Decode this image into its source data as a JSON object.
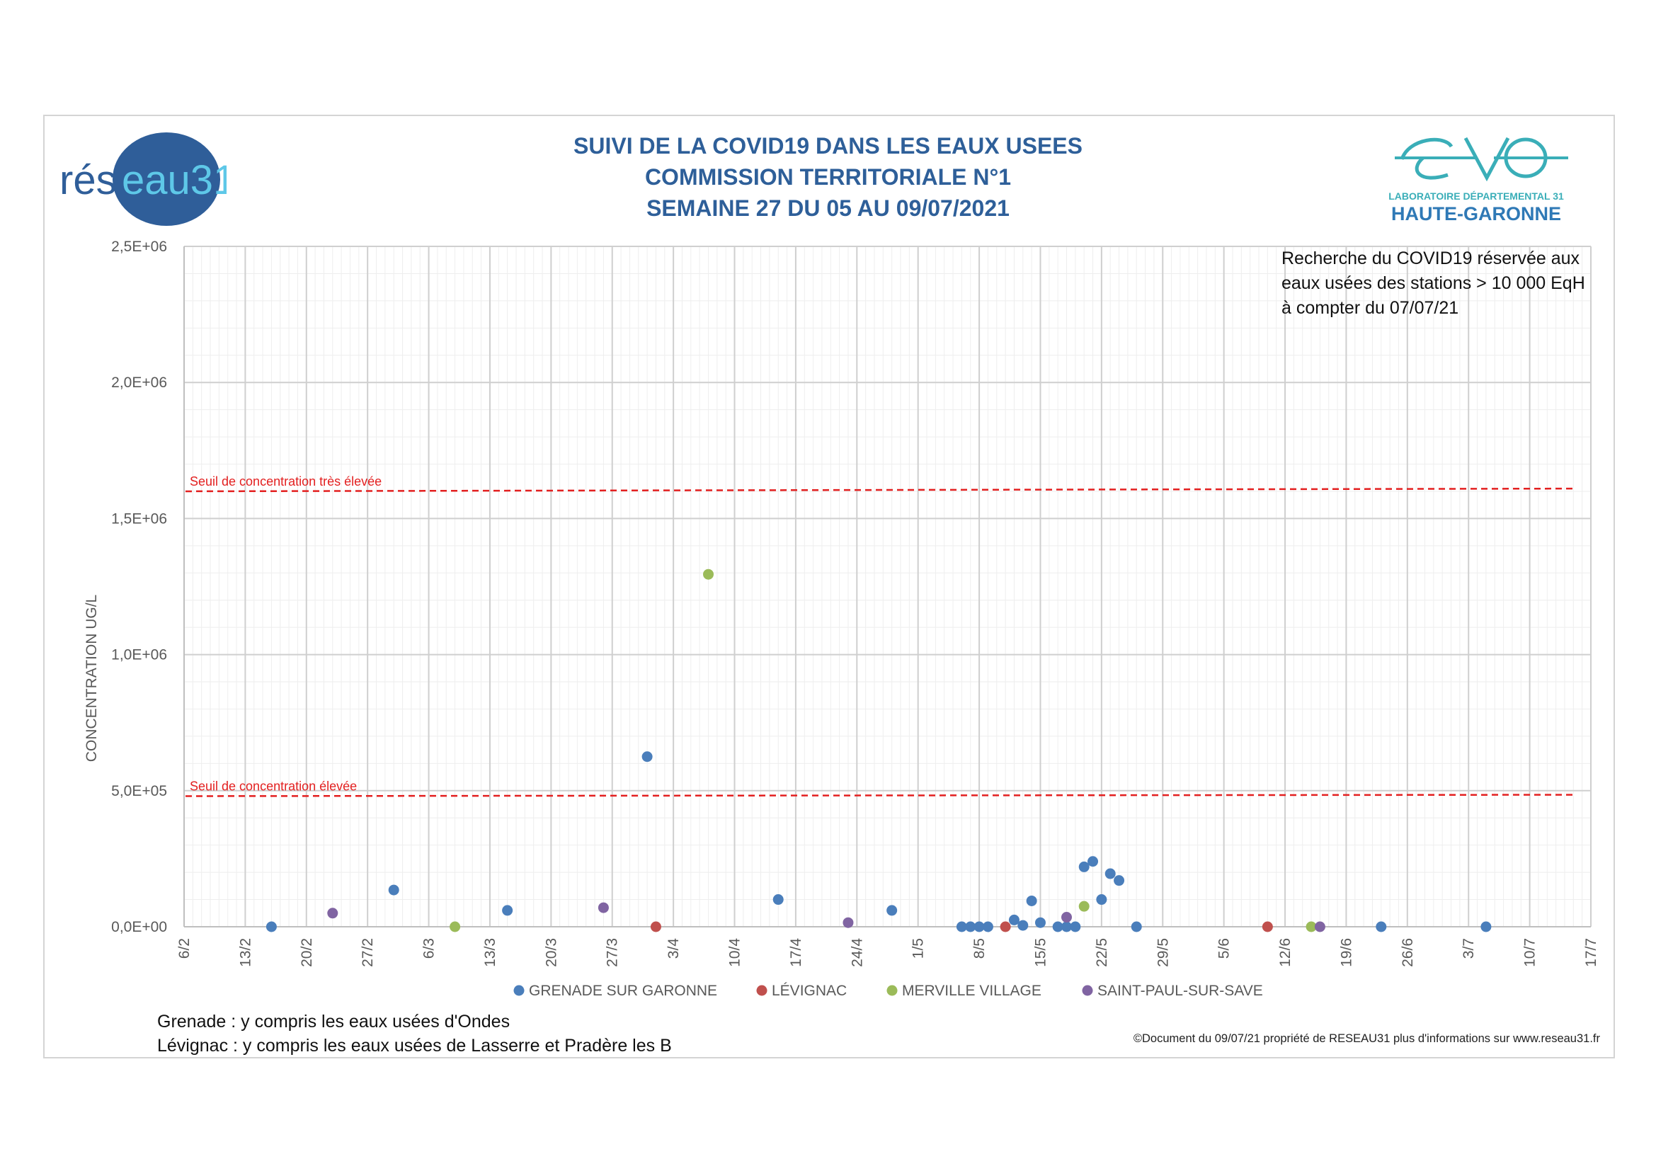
{
  "titles": {
    "line1": "SUIVI DE LA COVID19 DANS LES EAUX USEES",
    "line2": "COMMISSION TERRITORIALE N°1",
    "line3": "SEMAINE 27 DU 05 AU 09/07/2021"
  },
  "logos": {
    "left_part1": "rés",
    "left_part2": "eau31",
    "right_line1": "LABORATOIRE DÉPARTEMENTAL 31",
    "right_line2": "HAUTE-GARONNE"
  },
  "note": "Recherche du COVID19 réservée aux eaux usées des stations > 10 000 EqH à compter du 07/07/21",
  "footer": {
    "note1": "Grenade : y compris les eaux usées d'Ondes",
    "note2": "Lévignac : y compris les eaux usées de Lasserre et Pradère les B",
    "copyright": "©Document du 09/07/21 propriété de RESEAU31 plus d'informations sur www.reseau31.fr"
  },
  "colors": {
    "title": "#2e5f99",
    "grenade": "#4a7ebb",
    "levignac": "#c0504d",
    "merville": "#9bbb59",
    "saintpaul": "#8064a2",
    "threshold": "#e32020"
  },
  "chart_data": {
    "type": "scatter",
    "ylabel": "CONCENTRATION UG/L",
    "xlabel": "",
    "x_range": [
      "2021-02-06",
      "2021-07-17"
    ],
    "ylim": [
      0,
      2500000
    ],
    "y_ticks": [
      0,
      500000,
      1000000,
      1500000,
      2000000,
      2500000
    ],
    "y_tick_labels": [
      "0,0E+00",
      "5,0E+05",
      "1,0E+06",
      "1,5E+06",
      "2,0E+06",
      "2,5E+06"
    ],
    "x_ticks": [
      "2021-02-06",
      "2021-02-13",
      "2021-02-20",
      "2021-02-27",
      "2021-03-06",
      "2021-03-13",
      "2021-03-20",
      "2021-03-27",
      "2021-04-03",
      "2021-04-10",
      "2021-04-17",
      "2021-04-24",
      "2021-05-01",
      "2021-05-08",
      "2021-05-15",
      "2021-05-22",
      "2021-05-29",
      "2021-06-05",
      "2021-06-12",
      "2021-06-19",
      "2021-06-26",
      "2021-07-03",
      "2021-07-10",
      "2021-07-17"
    ],
    "x_tick_labels": [
      "6/2",
      "13/2",
      "20/2",
      "27/2",
      "6/3",
      "13/3",
      "20/3",
      "27/3",
      "3/4",
      "10/4",
      "17/4",
      "24/4",
      "1/5",
      "8/5",
      "15/5",
      "22/5",
      "29/5",
      "5/6",
      "12/6",
      "19/6",
      "26/6",
      "3/7",
      "10/7",
      "17/7"
    ],
    "grid": true,
    "legend_position": "bottom",
    "thresholds": [
      {
        "label": "Seuil de concentration très élevée",
        "y_start": 1600000,
        "y_end": 1610000
      },
      {
        "label": "Seuil de concentration élevée",
        "y_start": 480000,
        "y_end": 485000
      }
    ],
    "series": [
      {
        "name": "GRENADE SUR GARONNE",
        "color": "#4a7ebb",
        "points": [
          [
            "2021-02-16",
            0
          ],
          [
            "2021-03-02",
            135000
          ],
          [
            "2021-03-15",
            60000
          ],
          [
            "2021-03-31",
            625000
          ],
          [
            "2021-04-15",
            100000
          ],
          [
            "2021-04-28",
            60000
          ],
          [
            "2021-05-06",
            0
          ],
          [
            "2021-05-07",
            0
          ],
          [
            "2021-05-08",
            0
          ],
          [
            "2021-05-09",
            0
          ],
          [
            "2021-05-12",
            25000
          ],
          [
            "2021-05-13",
            5000
          ],
          [
            "2021-05-14",
            95000
          ],
          [
            "2021-05-15",
            15000
          ],
          [
            "2021-05-17",
            0
          ],
          [
            "2021-05-18",
            0
          ],
          [
            "2021-05-19",
            0
          ],
          [
            "2021-05-20",
            220000
          ],
          [
            "2021-05-21",
            240000
          ],
          [
            "2021-05-22",
            100000
          ],
          [
            "2021-05-23",
            195000
          ],
          [
            "2021-05-24",
            170000
          ],
          [
            "2021-05-26",
            0
          ],
          [
            "2021-06-23",
            0
          ],
          [
            "2021-07-05",
            0
          ]
        ]
      },
      {
        "name": "LÉVIGNAC",
        "color": "#c0504d",
        "points": [
          [
            "2021-04-01",
            0
          ],
          [
            "2021-05-11",
            0
          ],
          [
            "2021-06-10",
            0
          ]
        ]
      },
      {
        "name": "MERVILLE VILLAGE",
        "color": "#9bbb59",
        "points": [
          [
            "2021-03-09",
            0
          ],
          [
            "2021-04-07",
            1295000
          ],
          [
            "2021-05-20",
            75000
          ],
          [
            "2021-06-15",
            0
          ]
        ]
      },
      {
        "name": "SAINT-PAUL-SUR-SAVE",
        "color": "#8064a2",
        "points": [
          [
            "2021-02-23",
            50000
          ],
          [
            "2021-03-26",
            70000
          ],
          [
            "2021-04-23",
            15000
          ],
          [
            "2021-05-18",
            35000
          ],
          [
            "2021-06-16",
            0
          ]
        ]
      }
    ]
  }
}
